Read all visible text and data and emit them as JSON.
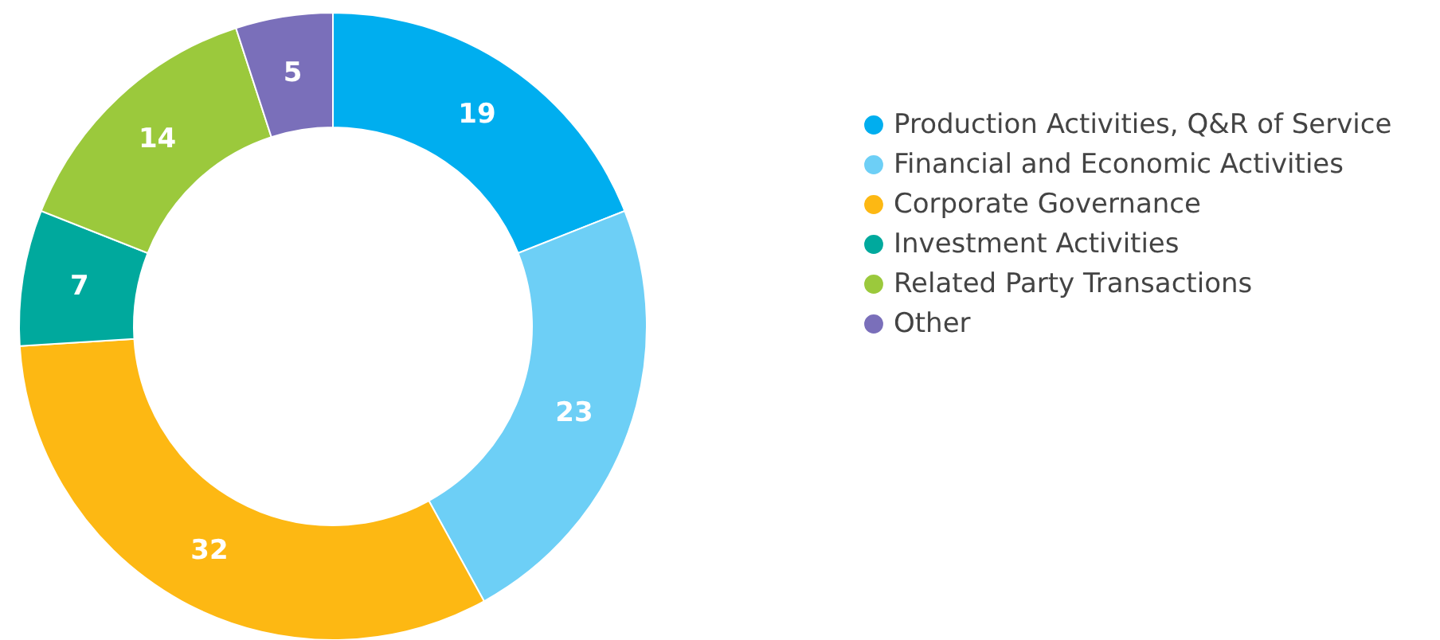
{
  "chart_data": {
    "type": "donut",
    "categories": [
      "Production Activities, Q&R of Service",
      "Financial and Economic Activities",
      "Corporate Governance",
      "Investment Activities",
      "Related Party Transactions",
      "Other"
    ],
    "values": [
      19,
      23,
      32,
      7,
      14,
      5
    ],
    "colors": [
      "#00aeef",
      "#6dcff6",
      "#fdb813",
      "#00a99d",
      "#9bc93c",
      "#7a6fba"
    ],
    "data_labels": true,
    "legend": "right"
  }
}
